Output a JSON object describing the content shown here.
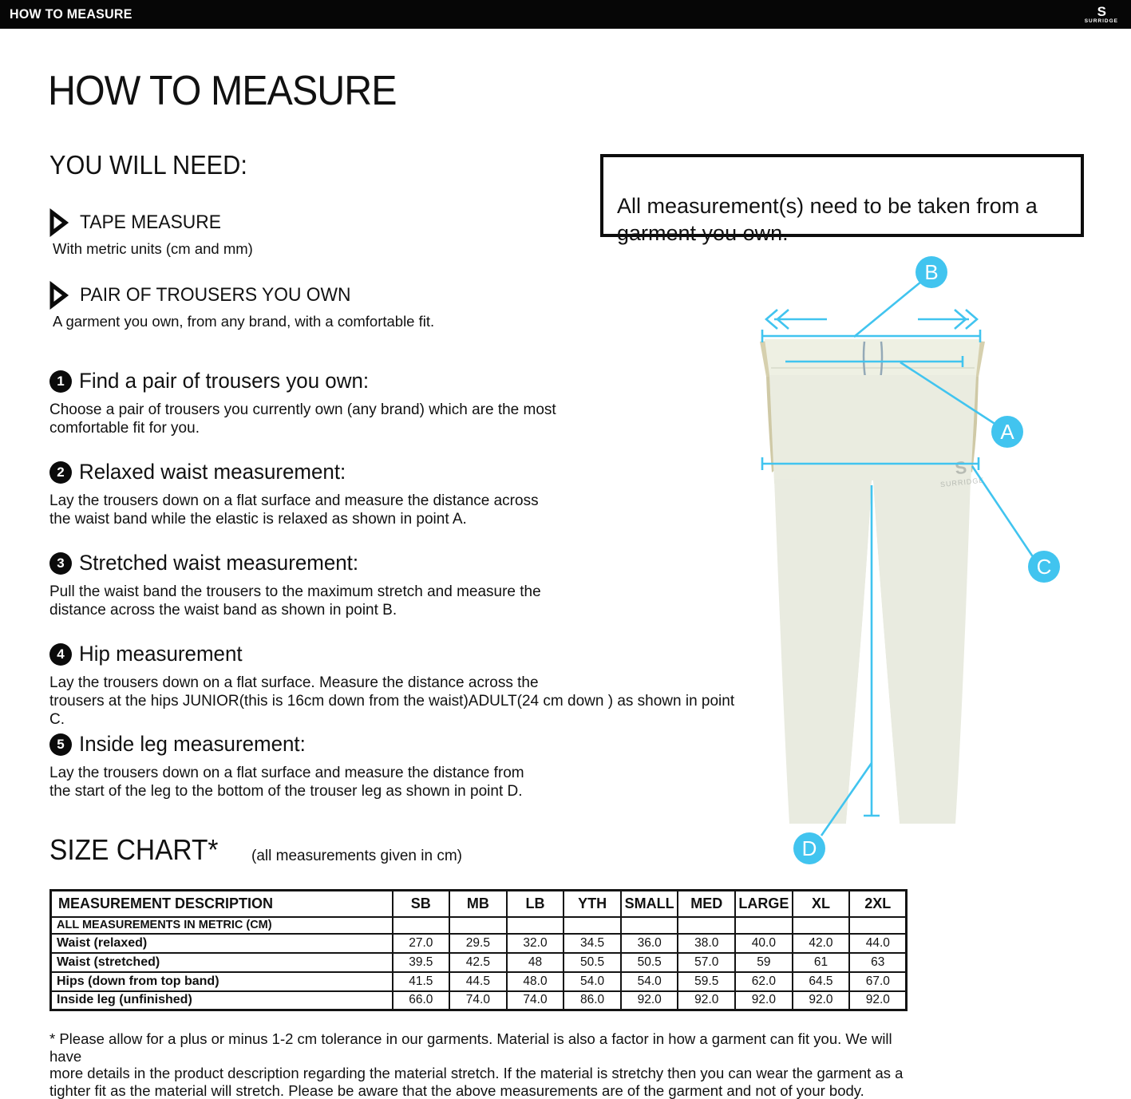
{
  "topbar": {
    "title": "HOW TO MEASURE",
    "brand_initial": "S",
    "brand_name": "SURRIDGE"
  },
  "title": "HOW TO MEASURE",
  "you_will_need": {
    "heading": "YOU WILL NEED:",
    "tools": [
      {
        "label": "TAPE MEASURE",
        "description": "With metric units (cm and mm)"
      },
      {
        "label": "PAIR OF TROUSERS YOU OWN",
        "description": "A garment you own, from any brand, with a comfortable fit."
      }
    ]
  },
  "steps": [
    {
      "number": "1",
      "heading": "Find a pair of trousers you own:",
      "body": "Choose a pair of trousers you currently own (any brand) which are the most\ncomfortable fit for you."
    },
    {
      "number": "2",
      "heading": "Relaxed waist measurement:",
      "body": "Lay the trousers down on a flat surface and measure the distance across\nthe waist band while the elastic is relaxed as shown in point A."
    },
    {
      "number": "3",
      "heading": "Stretched waist measurement:",
      "body": "Pull the waist band the trousers to the maximum stretch and measure the\ndistance across the waist band as shown in point B."
    },
    {
      "number": "4",
      "heading": "Hip measurement",
      "body": "Lay the trousers down on a flat surface. Measure the distance across the\ntrousers at the hips JUNIOR(this is 16cm down from the waist)ADULT(24 cm down ) as shown in point C."
    },
    {
      "number": "5",
      "heading": "Inside leg measurement:",
      "body": "Lay the trousers down on a flat surface and measure the distance from\nthe start of the leg to the bottom of the trouser leg as shown in point D."
    }
  ],
  "note": "All measurement(s) need to be taken from a\ngarment you own.",
  "diagram": {
    "points": {
      "a": "A",
      "b": "B",
      "c": "C",
      "d": "D"
    },
    "watermark_initial": "S",
    "watermark_name": "SURRIDGE",
    "accent_color": "#41c4ef"
  },
  "size_chart": {
    "heading": "SIZE CHART*",
    "subheading": "(all measurements given in cm)",
    "table": {
      "header": [
        "MEASUREMENT DESCRIPTION",
        "SB",
        "MB",
        "LB",
        "YTH",
        "SMALL",
        "MED",
        "LARGE",
        "XL",
        "2XL"
      ],
      "metric_row_label": "ALL MEASUREMENTS IN METRIC (CM)",
      "rows": [
        {
          "label": "Waist (relaxed)",
          "values": [
            "27.0",
            "29.5",
            "32.0",
            "34.5",
            "36.0",
            "38.0",
            "40.0",
            "42.0",
            "44.0"
          ]
        },
        {
          "label": "Waist (stretched)",
          "values": [
            "39.5",
            "42.5",
            "48",
            "50.5",
            "50.5",
            "57.0",
            "59",
            "61",
            "63"
          ]
        },
        {
          "label": "Hips (down from top band)",
          "values": [
            "41.5",
            "44.5",
            "48.0",
            "54.0",
            "54.0",
            "59.5",
            "62.0",
            "64.5",
            "67.0"
          ]
        },
        {
          "label": "Inside leg (unfinished)",
          "values": [
            "66.0",
            "74.0",
            "74.0",
            "86.0",
            "92.0",
            "92.0",
            "92.0",
            "92.0",
            "92.0"
          ]
        }
      ]
    }
  },
  "footnote": "* Please allow for a plus or minus 1-2 cm tolerance in our garments. Material is also a factor in how a garment can fit you. We will have\nmore details in the product description regarding the material stretch.  If the material is stretchy then you can wear the garment as a\ntighter fit as the material will stretch.  Please be aware that the above measurements are of the garment and not of your body."
}
